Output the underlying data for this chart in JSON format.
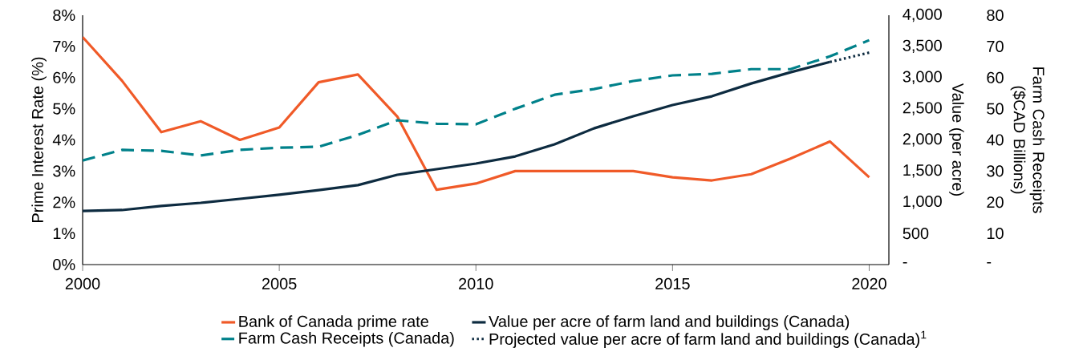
{
  "chart_data": {
    "type": "line",
    "xlabel": null,
    "ylabel": "Prime Interest Rate (%)",
    "y2label": "Value (per acre)",
    "y3label": "Farm Cash Receipts ($CAD Billions)",
    "x": [
      2000,
      2001,
      2002,
      2003,
      2004,
      2005,
      2006,
      2007,
      2008,
      2009,
      2010,
      2011,
      2012,
      2013,
      2014,
      2015,
      2016,
      2017,
      2018,
      2019,
      2020
    ],
    "xlim": [
      2000,
      2020.5
    ],
    "xticks": [
      2000,
      2005,
      2010,
      2015,
      2020
    ],
    "ylim": [
      0,
      8
    ],
    "yticks": [
      {
        "value": 0,
        "label": "0%"
      },
      {
        "value": 1,
        "label": "1%"
      },
      {
        "value": 2,
        "label": "2%"
      },
      {
        "value": 3,
        "label": "3%"
      },
      {
        "value": 4,
        "label": "4%"
      },
      {
        "value": 5,
        "label": "5%"
      },
      {
        "value": 6,
        "label": "6%"
      },
      {
        "value": 7,
        "label": "7%"
      },
      {
        "value": 8,
        "label": "8%"
      }
    ],
    "y2lim": [
      0,
      4000
    ],
    "y2ticks": [
      {
        "value": 0,
        "label": "-"
      },
      500,
      {
        "value": 1000,
        "label": "1,000"
      },
      {
        "value": 1500,
        "label": "1,500"
      },
      {
        "value": 2000,
        "label": "2,000"
      },
      {
        "value": 2500,
        "label": "2,500"
      },
      {
        "value": 3000,
        "label": "3,000"
      },
      {
        "value": 3500,
        "label": "3,500"
      },
      {
        "value": 4000,
        "label": "4,000"
      }
    ],
    "y3lim": [
      0,
      80
    ],
    "y3ticks": [
      {
        "value": 0,
        "label": "-"
      },
      10,
      20,
      30,
      40,
      50,
      60,
      70,
      80
    ],
    "legend": "bottom",
    "marker": "none",
    "series": [
      {
        "name": "Bank of Canada prime rate",
        "color": "#f05a28",
        "line_style": "solid",
        "axis": "y",
        "values": [
          7.3,
          5.9,
          4.25,
          4.6,
          4.0,
          4.4,
          5.85,
          6.1,
          4.75,
          2.4,
          2.6,
          3.0,
          3.0,
          3.0,
          3.0,
          2.8,
          2.7,
          2.9,
          3.4,
          3.95,
          2.8
        ]
      },
      {
        "name": "Value per acre of farm land and buildings (Canada)",
        "color": "#0d2b40",
        "line_style": "solid",
        "axis": "y2",
        "values": [
          860,
          875,
          940,
          990,
          1055,
          1120,
          1195,
          1275,
          1440,
          1530,
          1620,
          1735,
          1930,
          2185,
          2380,
          2560,
          2700,
          2905,
          3085,
          3250,
          null
        ]
      },
      {
        "name": "Farm Cash Receipts (Canada)",
        "color": "#00818a",
        "line_style": "dashed",
        "axis": "y3",
        "values": [
          33.4,
          36.8,
          36.5,
          35,
          36.8,
          37.5,
          37.8,
          41.6,
          46.3,
          45.2,
          45,
          50,
          54.5,
          56.3,
          58.9,
          60.7,
          61.2,
          62.7,
          62.7,
          66.8,
          72
        ]
      },
      {
        "name": "Projected value per acre of farm land and buildings (Canada)$^{1}$",
        "color": "#0d2b40",
        "line_style": "dotted",
        "axis": "y2",
        "x": [
          2019,
          2020
        ],
        "values": [
          3250,
          3400
        ]
      }
    ]
  }
}
